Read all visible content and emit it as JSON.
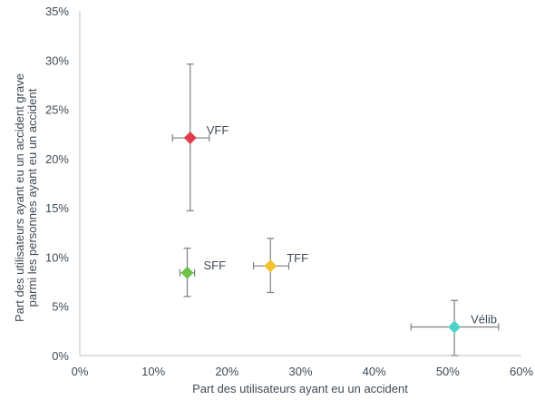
{
  "chart_data": {
    "type": "scatter",
    "title": "",
    "xlabel": "Part des utilisateurs ayant eu un accident",
    "ylabel": [
      "Part des utilisateurs ayant eu un accident grave",
      "parmi les personnes ayant eu un accident"
    ],
    "xlim": [
      0,
      60
    ],
    "ylim": [
      0,
      35
    ],
    "x_ticks": [
      "0%",
      "10%",
      "20%",
      "30%",
      "40%",
      "50%",
      "60%"
    ],
    "y_ticks": [
      "0%",
      "5%",
      "10%",
      "15%",
      "20%",
      "25%",
      "30%",
      "35%"
    ],
    "grid": false,
    "marker": "diamond",
    "points": [
      {
        "label": "VFF",
        "x": 15.0,
        "y": 22.1,
        "x_err": [
          12.6,
          17.6
        ],
        "y_err": [
          14.7,
          29.6
        ],
        "color": "#e03c4a"
      },
      {
        "label": "SFF",
        "x": 14.6,
        "y": 8.4,
        "x_err": [
          13.6,
          15.6
        ],
        "y_err": [
          6.0,
          10.9
        ],
        "color": "#6cc24a"
      },
      {
        "label": "TFF",
        "x": 25.9,
        "y": 9.1,
        "x_err": [
          23.6,
          28.4
        ],
        "y_err": [
          6.4,
          11.9
        ],
        "color": "#f2c12e"
      },
      {
        "label": "Vélib",
        "x": 50.9,
        "y": 2.9,
        "x_err": [
          45.0,
          56.9
        ],
        "y_err": [
          0.0,
          5.6
        ],
        "color": "#4fd1c9"
      }
    ]
  }
}
